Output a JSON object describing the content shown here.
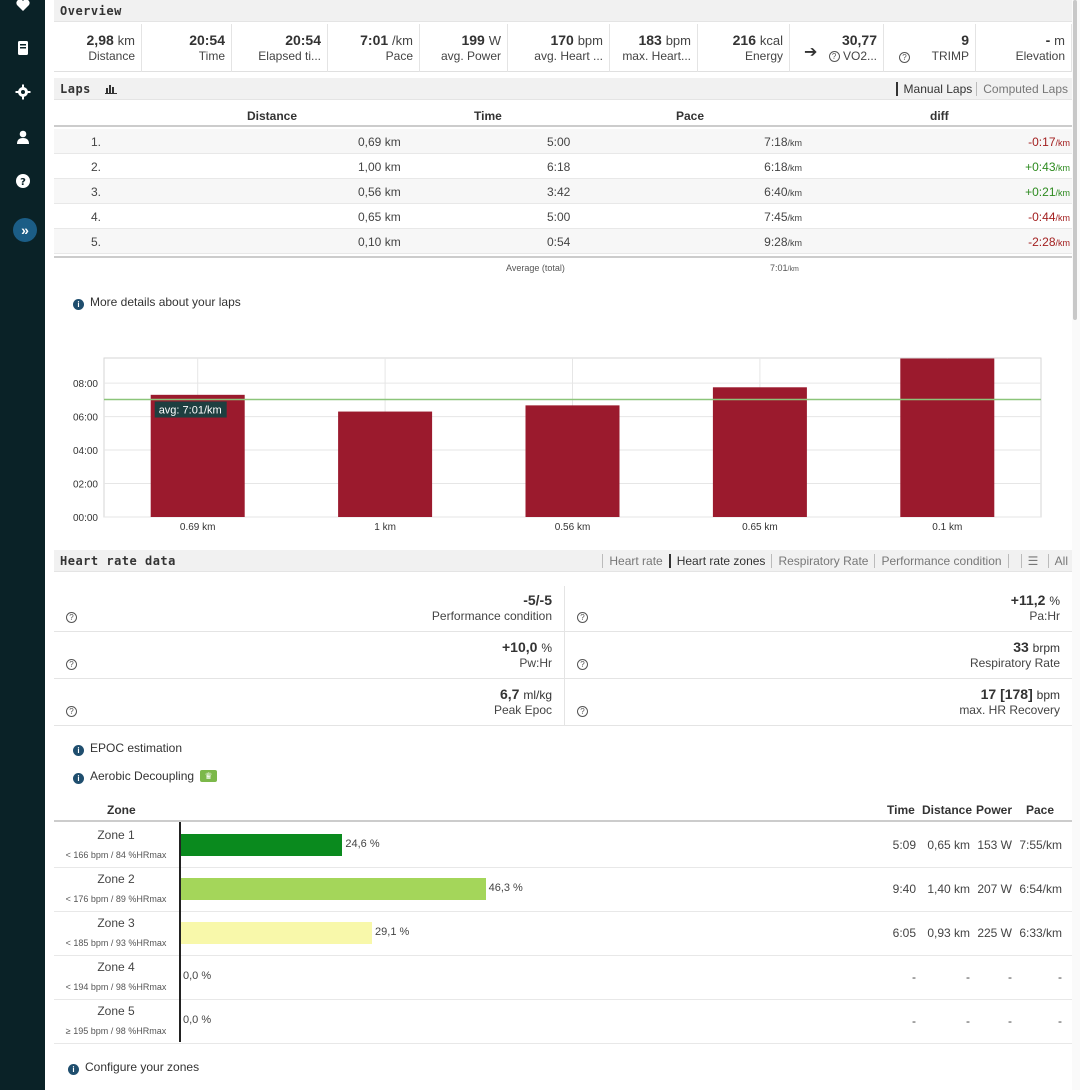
{
  "overview": {
    "title": "Overview",
    "stats": [
      {
        "value": "2,98",
        "unit": "km",
        "label": "Distance"
      },
      {
        "value": "20:54",
        "unit": "",
        "label": "Time"
      },
      {
        "value": "20:54",
        "unit": "",
        "label": "Elapsed ti..."
      },
      {
        "value": "7:01",
        "unit": "/km",
        "label": "Pace"
      },
      {
        "value": "199",
        "unit": "W",
        "label": "avg. Power"
      },
      {
        "value": "170",
        "unit": "bpm",
        "label": "avg. Heart ..."
      },
      {
        "value": "183",
        "unit": "bpm",
        "label": "max. Heart..."
      },
      {
        "value": "216",
        "unit": "kcal",
        "label": "Energy"
      },
      {
        "value": "30,77",
        "unit": "",
        "label": "VO2..."
      },
      {
        "value": "9",
        "unit": "",
        "label": "TRIMP"
      },
      {
        "value": "-",
        "unit": "m",
        "label": "Elevation"
      }
    ]
  },
  "laps": {
    "title": "Laps",
    "tabs": [
      "Manual Laps",
      "Computed Laps"
    ],
    "columns": [
      "Distance",
      "Time",
      "Pace",
      "diff"
    ],
    "rows": [
      {
        "n": "1.",
        "distance": "0,69 km",
        "time": "5:00",
        "pace": "7:18",
        "pace_unit": "/km",
        "diff": "-0:17",
        "diff_unit": "/km"
      },
      {
        "n": "2.",
        "distance": "1,00 km",
        "time": "6:18",
        "pace": "6:18",
        "pace_unit": "/km",
        "diff": "+0:43",
        "diff_unit": "/km"
      },
      {
        "n": "3.",
        "distance": "0,56 km",
        "time": "3:42",
        "pace": "6:40",
        "pace_unit": "/km",
        "diff": "+0:21",
        "diff_unit": "/km"
      },
      {
        "n": "4.",
        "distance": "0,65 km",
        "time": "5:00",
        "pace": "7:45",
        "pace_unit": "/km",
        "diff": "-0:44",
        "diff_unit": "/km"
      },
      {
        "n": "5.",
        "distance": "0,10 km",
        "time": "0:54",
        "pace": "9:28",
        "pace_unit": "/km",
        "diff": "-2:28",
        "diff_unit": "/km"
      }
    ],
    "average_label": "Average (total)",
    "average_pace": "7:01",
    "average_unit": "/km",
    "more_details": "More details about your laps"
  },
  "chart_data": {
    "type": "bar",
    "categories": [
      "0.69 km",
      "1 km",
      "0.56 km",
      "0.65 km",
      "0.1 km"
    ],
    "values": [
      7.3,
      6.3,
      6.67,
      7.75,
      9.47
    ],
    "yticks": [
      "00:00",
      "02:00",
      "04:00",
      "06:00",
      "08:00"
    ],
    "ylim": [
      0,
      9.5
    ],
    "average_line": 7.02,
    "average_label": "avg: 7:01/km",
    "bar_color": "#9b1a2d",
    "line_color": "#8cc57a"
  },
  "heart_rate": {
    "title": "Heart rate data",
    "tabs": [
      "Heart rate",
      "Heart rate zones",
      "Respiratory Rate",
      "Performance condition",
      "All"
    ],
    "metrics": [
      {
        "value": "-5/-5",
        "unit": "",
        "label": "Performance condition"
      },
      {
        "value": "+11,2",
        "unit": "%",
        "label": "Pa:Hr"
      },
      {
        "value": "+10,0",
        "unit": "%",
        "label": "Pw:Hr"
      },
      {
        "value": "33",
        "unit": "brpm",
        "label": "Respiratory Rate"
      },
      {
        "value": "6,7",
        "unit": "ml/kg",
        "label": "Peak Epoc"
      },
      {
        "value": "17 [178]",
        "unit": "bpm",
        "label": "max. HR Recovery"
      }
    ],
    "epoc_link": "EPOC estimation",
    "decoupling_link": "Aerobic Decoupling"
  },
  "zones": {
    "columns": [
      "Zone",
      "Time",
      "Distance",
      "Power",
      "Pace"
    ],
    "rows": [
      {
        "name": "Zone 1",
        "sub": "< 166 bpm / 84 %HRmax",
        "percent": 24.6,
        "pct_label": "24,6 %",
        "color": "#0a8a1e",
        "time": "5:09",
        "distance": "0,65 km",
        "power": "153 W",
        "pace": "7:55/km"
      },
      {
        "name": "Zone 2",
        "sub": "< 176 bpm / 89 %HRmax",
        "percent": 46.3,
        "pct_label": "46,3 %",
        "color": "#a4d65a",
        "time": "9:40",
        "distance": "1,40 km",
        "power": "207 W",
        "pace": "6:54/km"
      },
      {
        "name": "Zone 3",
        "sub": "< 185 bpm / 93 %HRmax",
        "percent": 29.1,
        "pct_label": "29,1 %",
        "color": "#f8f8aa",
        "time": "6:05",
        "distance": "0,93 km",
        "power": "225 W",
        "pace": "6:33/km"
      },
      {
        "name": "Zone 4",
        "sub": "< 194 bpm / 98 %HRmax",
        "percent": 0,
        "pct_label": "0,0 %",
        "color": "#f0a030",
        "time": "-",
        "distance": "-",
        "power": "-",
        "pace": "-"
      },
      {
        "name": "Zone 5",
        "sub": "≥ 195 bpm / 98 %HRmax",
        "percent": 0,
        "pct_label": "0,0 %",
        "color": "#c02020",
        "time": "-",
        "distance": "-",
        "power": "-",
        "pace": "-"
      }
    ],
    "configure_link": "Configure your zones"
  }
}
